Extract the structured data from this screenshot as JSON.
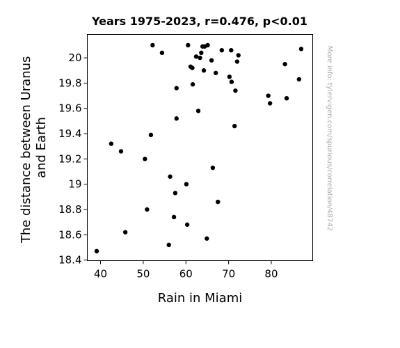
{
  "chart_data": {
    "type": "scatter",
    "title": "Years 1975-2023, r=0.476, p<0.01",
    "xlabel": "Rain in Miami",
    "ylabel_lines": [
      "The distance between Uranus",
      "and Earth"
    ],
    "side_note": "More info: tylervigen.com/spurious/correlation/48742",
    "xlim": [
      36.9,
      89.7
    ],
    "ylim": [
      18.395,
      20.185
    ],
    "xticks": [
      40,
      50,
      60,
      70,
      80
    ],
    "yticks": [
      18.4,
      18.6,
      18.8,
      19.0,
      19.2,
      19.4,
      19.6,
      19.8,
      20.0
    ],
    "ytick_labels": [
      "18.4",
      "18.6",
      "18.8",
      "19",
      "19.2",
      "19.4",
      "19.6",
      "19.8",
      "20"
    ],
    "grid": false,
    "marker_color": "#000000",
    "points": [
      [
        39.1,
        18.47
      ],
      [
        42.5,
        19.32
      ],
      [
        44.8,
        19.26
      ],
      [
        45.8,
        18.62
      ],
      [
        50.4,
        19.2
      ],
      [
        50.9,
        18.8
      ],
      [
        51.8,
        19.39
      ],
      [
        52.2,
        20.1
      ],
      [
        54.4,
        20.04
      ],
      [
        56.0,
        18.52
      ],
      [
        56.3,
        19.06
      ],
      [
        57.2,
        18.74
      ],
      [
        57.5,
        18.93
      ],
      [
        57.8,
        19.76
      ],
      [
        57.8,
        19.52
      ],
      [
        60.1,
        19.0
      ],
      [
        60.3,
        18.68
      ],
      [
        60.5,
        20.1
      ],
      [
        61.1,
        19.93
      ],
      [
        61.5,
        19.92
      ],
      [
        61.6,
        19.79
      ],
      [
        62.4,
        20.01
      ],
      [
        62.9,
        19.58
      ],
      [
        63.3,
        20.0
      ],
      [
        63.6,
        20.04
      ],
      [
        63.9,
        20.09
      ],
      [
        64.2,
        19.9
      ],
      [
        64.4,
        20.09
      ],
      [
        64.9,
        18.57
      ],
      [
        65.1,
        20.1
      ],
      [
        66.0,
        19.98
      ],
      [
        66.3,
        19.13
      ],
      [
        67.0,
        19.88
      ],
      [
        67.5,
        18.86
      ],
      [
        68.4,
        20.06
      ],
      [
        70.2,
        19.85
      ],
      [
        70.6,
        20.06
      ],
      [
        70.7,
        19.81
      ],
      [
        71.4,
        19.46
      ],
      [
        71.6,
        19.74
      ],
      [
        72.0,
        19.97
      ],
      [
        72.3,
        20.02
      ],
      [
        79.3,
        19.7
      ],
      [
        79.7,
        19.64
      ],
      [
        83.2,
        19.95
      ],
      [
        83.6,
        19.68
      ],
      [
        86.5,
        19.83
      ],
      [
        87.0,
        20.07
      ]
    ]
  }
}
